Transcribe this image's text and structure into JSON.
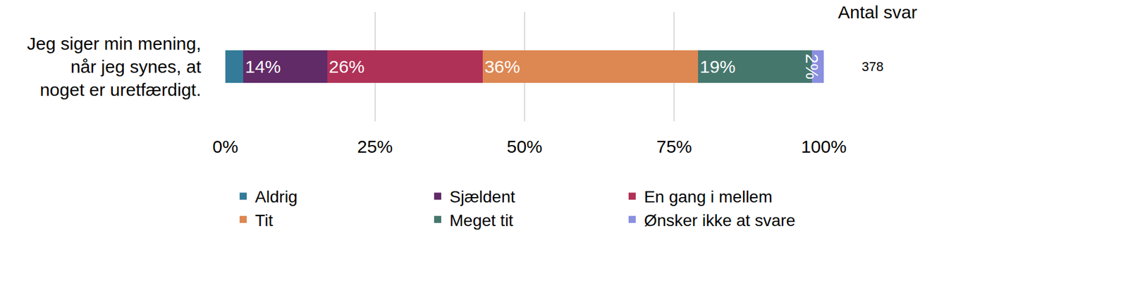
{
  "chart_data": {
    "type": "bar",
    "orientation": "horizontal",
    "stacked": true,
    "categories": [
      "Jeg siger min mening,\nnår jeg synes, at\nnoget er uretfærdigt."
    ],
    "series": [
      {
        "name": "Aldrig",
        "color": "#337b99",
        "values": [
          3
        ],
        "value_labels": [
          null
        ]
      },
      {
        "name": "Sjældent",
        "color": "#612b67",
        "values": [
          14
        ],
        "value_labels": [
          "14%"
        ]
      },
      {
        "name": "En gang i mellem",
        "color": "#b03157",
        "values": [
          26
        ],
        "value_labels": [
          "26%"
        ]
      },
      {
        "name": "Tit",
        "color": "#dd8753",
        "values": [
          36
        ],
        "value_labels": [
          "36%"
        ]
      },
      {
        "name": "Meget tit",
        "color": "#46776d",
        "values": [
          19
        ],
        "value_labels": [
          "19%"
        ]
      },
      {
        "name": "Ønsker ikke at svare",
        "color": "#8a8fdf",
        "values": [
          2
        ],
        "value_labels": [
          "2%"
        ]
      }
    ],
    "xlim": [
      0,
      100
    ],
    "xticks": [
      {
        "value": 0,
        "label": "0%"
      },
      {
        "value": 25,
        "label": "25%"
      },
      {
        "value": 50,
        "label": "50%"
      },
      {
        "value": 75,
        "label": "75%"
      },
      {
        "value": 100,
        "label": "100%"
      }
    ],
    "grid": true,
    "legend": "bottom",
    "data_labels": true,
    "count_title": "Antal svar",
    "counts": [
      378
    ]
  }
}
